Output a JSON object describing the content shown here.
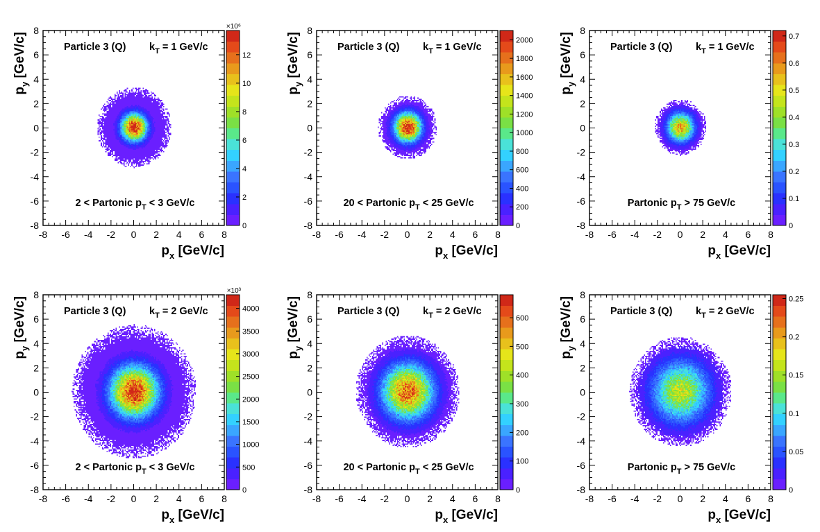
{
  "figure_title": "",
  "chart_data": [
    {
      "type": "heatmap",
      "title": "",
      "particle_label": "Particle 3 (Q)",
      "kt_label": {
        "main": "k",
        "sub": "T",
        "rest": " = 1 GeV/c"
      },
      "pt_label": {
        "pre": "2 < Partonic p",
        "sub": "T",
        "post": " < 3 GeV/c"
      },
      "xlabel": {
        "main": "p",
        "sub": "x",
        "rest": " [GeV/c]"
      },
      "ylabel": {
        "main": "p",
        "sub": "y",
        "rest": " [GeV/c]"
      },
      "xlim": [
        -8,
        8
      ],
      "ylim": [
        -8,
        8
      ],
      "xticks": [
        "-8",
        "-6",
        "-4",
        "-2",
        "0",
        "2",
        "4",
        "6",
        "8"
      ],
      "yticks": [
        "-8",
        "-6",
        "-4",
        "-2",
        "0",
        "2",
        "4",
        "6",
        "8"
      ],
      "center": [
        0,
        0
      ],
      "gaussian_sigma": 0.75,
      "outer_radius": 3.3,
      "z_peak": 13.7,
      "zlim": [
        0,
        13.7
      ],
      "color_multiplier": "×10⁶",
      "color_ticks": [
        {
          "v": 0,
          "label": "0"
        },
        {
          "v": 2,
          "label": "2"
        },
        {
          "v": 4,
          "label": "4"
        },
        {
          "v": 6,
          "label": "6"
        },
        {
          "v": 8,
          "label": "8"
        },
        {
          "v": 10,
          "label": "10"
        },
        {
          "v": 12,
          "label": "12"
        }
      ],
      "colors": [
        "#6a1fff",
        "#4a21ff",
        "#2a31ff",
        "#2a53ff",
        "#3a74ff",
        "#3aa6ff",
        "#33d1ff",
        "#4ae2d8",
        "#5ae88a",
        "#7ae045",
        "#9fe028",
        "#c4e41c",
        "#e6e51a",
        "#e8c11c",
        "#e89a1c",
        "#e6701c",
        "#e44a1a",
        "#d02818"
      ]
    },
    {
      "type": "heatmap",
      "title": "",
      "particle_label": "Particle 3 (Q)",
      "kt_label": {
        "main": "k",
        "sub": "T",
        "rest": " = 1 GeV/c"
      },
      "pt_label": {
        "pre": "20 < Partonic p",
        "sub": "T",
        "post": " < 25 GeV/c"
      },
      "xlabel": {
        "main": "p",
        "sub": "x",
        "rest": " [GeV/c]"
      },
      "ylabel": {
        "main": "p",
        "sub": "y",
        "rest": " [GeV/c]"
      },
      "xlim": [
        -8,
        8
      ],
      "ylim": [
        -8,
        8
      ],
      "xticks": [
        "-8",
        "-6",
        "-4",
        "-2",
        "0",
        "2",
        "4",
        "6",
        "8"
      ],
      "yticks": [
        "-8",
        "-6",
        "-4",
        "-2",
        "0",
        "2",
        "4",
        "6",
        "8"
      ],
      "center": [
        0,
        0
      ],
      "gaussian_sigma": 0.8,
      "outer_radius": 2.6,
      "z_peak": 2080,
      "zlim": [
        0,
        2100
      ],
      "color_multiplier": "",
      "color_ticks": [
        {
          "v": 0,
          "label": "0"
        },
        {
          "v": 200,
          "label": "200"
        },
        {
          "v": 400,
          "label": "400"
        },
        {
          "v": 600,
          "label": "600"
        },
        {
          "v": 800,
          "label": "800"
        },
        {
          "v": 1000,
          "label": "1000"
        },
        {
          "v": 1200,
          "label": "1200"
        },
        {
          "v": 1400,
          "label": "1400"
        },
        {
          "v": 1600,
          "label": "1600"
        },
        {
          "v": 1800,
          "label": "1800"
        },
        {
          "v": 2000,
          "label": "2000"
        }
      ],
      "colors": [
        "#6a1fff",
        "#4a21ff",
        "#2a31ff",
        "#2a53ff",
        "#3a74ff",
        "#3aa6ff",
        "#33d1ff",
        "#4ae2d8",
        "#5ae88a",
        "#7ae045",
        "#9fe028",
        "#c4e41c",
        "#e6e51a",
        "#e8c11c",
        "#e89a1c",
        "#e6701c",
        "#e44a1a",
        "#d02818"
      ]
    },
    {
      "type": "heatmap",
      "title": "",
      "particle_label": "Particle 3 (Q)",
      "kt_label": {
        "main": "k",
        "sub": "T",
        "rest": " = 1 GeV/c"
      },
      "pt_label": {
        "pre": "Partonic p",
        "sub": "T",
        "post": " > 75 GeV/c"
      },
      "xlabel": {
        "main": "p",
        "sub": "x",
        "rest": " [GeV/c]"
      },
      "ylabel": {
        "main": "p",
        "sub": "y",
        "rest": " [GeV/c]"
      },
      "xlim": [
        -8,
        8
      ],
      "ylim": [
        -8,
        8
      ],
      "xticks": [
        "-8",
        "-6",
        "-4",
        "-2",
        "0",
        "2",
        "4",
        "6",
        "8"
      ],
      "yticks": [
        "-8",
        "-6",
        "-4",
        "-2",
        "0",
        "2",
        "4",
        "6",
        "8"
      ],
      "center": [
        0,
        0
      ],
      "gaussian_sigma": 0.8,
      "outer_radius": 2.3,
      "z_peak": 0.55,
      "zlim": [
        0,
        0.72
      ],
      "color_multiplier": "",
      "color_ticks": [
        {
          "v": 0,
          "label": "0"
        },
        {
          "v": 0.1,
          "label": "0.1"
        },
        {
          "v": 0.2,
          "label": "0.2"
        },
        {
          "v": 0.3,
          "label": "0.3"
        },
        {
          "v": 0.4,
          "label": "0.4"
        },
        {
          "v": 0.5,
          "label": "0.5"
        },
        {
          "v": 0.6,
          "label": "0.6"
        },
        {
          "v": 0.7,
          "label": "0.7"
        }
      ],
      "colors": [
        "#6a1fff",
        "#4a21ff",
        "#2a31ff",
        "#2a53ff",
        "#3a74ff",
        "#3aa6ff",
        "#33d1ff",
        "#4ae2d8",
        "#5ae88a",
        "#7ae045",
        "#9fe028",
        "#c4e41c",
        "#e6e51a",
        "#e8c11c",
        "#e89a1c",
        "#e6701c",
        "#e44a1a",
        "#d02818"
      ]
    },
    {
      "type": "heatmap",
      "title": "",
      "particle_label": "Particle 3 (Q)",
      "kt_label": {
        "main": "k",
        "sub": "T",
        "rest": " = 2 GeV/c"
      },
      "pt_label": {
        "pre": "2 < Partonic p",
        "sub": "T",
        "post": " < 3 GeV/c"
      },
      "xlabel": {
        "main": "p",
        "sub": "x",
        "rest": " [GeV/c]"
      },
      "ylabel": {
        "main": "p",
        "sub": "y",
        "rest": " [GeV/c]"
      },
      "xlim": [
        -8,
        8
      ],
      "ylim": [
        -8,
        8
      ],
      "xticks": [
        "-8",
        "-6",
        "-4",
        "-2",
        "0",
        "2",
        "4",
        "6",
        "8"
      ],
      "yticks": [
        "-8",
        "-6",
        "-4",
        "-2",
        "0",
        "2",
        "4",
        "6",
        "8"
      ],
      "center": [
        0,
        0
      ],
      "gaussian_sigma": 1.4,
      "outer_radius": 5.5,
      "z_peak": 4200,
      "zlim": [
        0,
        4300
      ],
      "color_multiplier": "×10³",
      "color_ticks": [
        {
          "v": 0,
          "label": "0"
        },
        {
          "v": 500,
          "label": "500"
        },
        {
          "v": 1000,
          "label": "1000"
        },
        {
          "v": 1500,
          "label": "1500"
        },
        {
          "v": 2000,
          "label": "2000"
        },
        {
          "v": 2500,
          "label": "2500"
        },
        {
          "v": 3000,
          "label": "3000"
        },
        {
          "v": 3500,
          "label": "3500"
        },
        {
          "v": 4000,
          "label": "4000"
        }
      ],
      "colors": [
        "#6a1fff",
        "#4a21ff",
        "#2a31ff",
        "#2a53ff",
        "#3a74ff",
        "#3aa6ff",
        "#33d1ff",
        "#4ae2d8",
        "#5ae88a",
        "#7ae045",
        "#9fe028",
        "#c4e41c",
        "#e6e51a",
        "#e8c11c",
        "#e89a1c",
        "#e6701c",
        "#e44a1a",
        "#d02818"
      ]
    },
    {
      "type": "heatmap",
      "title": "",
      "particle_label": "Particle 3 (Q)",
      "kt_label": {
        "main": "k",
        "sub": "T",
        "rest": " = 2 GeV/c"
      },
      "pt_label": {
        "pre": "20 < Partonic p",
        "sub": "T",
        "post": " < 25 GeV/c"
      },
      "xlabel": {
        "main": "p",
        "sub": "x",
        "rest": " [GeV/c]"
      },
      "ylabel": {
        "main": "p",
        "sub": "y",
        "rest": " [GeV/c]"
      },
      "xlim": [
        -8,
        8
      ],
      "ylim": [
        -8,
        8
      ],
      "xticks": [
        "-8",
        "-6",
        "-4",
        "-2",
        "0",
        "2",
        "4",
        "6",
        "8"
      ],
      "yticks": [
        "-8",
        "-6",
        "-4",
        "-2",
        "0",
        "2",
        "4",
        "6",
        "8"
      ],
      "center": [
        0,
        0
      ],
      "gaussian_sigma": 1.5,
      "outer_radius": 4.6,
      "z_peak": 600,
      "zlim": [
        0,
        680
      ],
      "color_multiplier": "",
      "color_ticks": [
        {
          "v": 0,
          "label": "0"
        },
        {
          "v": 100,
          "label": "100"
        },
        {
          "v": 200,
          "label": "200"
        },
        {
          "v": 300,
          "label": "300"
        },
        {
          "v": 400,
          "label": "400"
        },
        {
          "v": 500,
          "label": "500"
        },
        {
          "v": 600,
          "label": "600"
        }
      ],
      "colors": [
        "#6a1fff",
        "#4a21ff",
        "#2a31ff",
        "#2a53ff",
        "#3a74ff",
        "#3aa6ff",
        "#33d1ff",
        "#4ae2d8",
        "#5ae88a",
        "#7ae045",
        "#9fe028",
        "#c4e41c",
        "#e6e51a",
        "#e8c11c",
        "#e89a1c",
        "#e6701c",
        "#e44a1a",
        "#d02818"
      ]
    },
    {
      "type": "heatmap",
      "title": "",
      "particle_label": "Particle 3 (Q)",
      "kt_label": {
        "main": "k",
        "sub": "T",
        "rest": " = 2 GeV/c"
      },
      "pt_label": {
        "pre": "Partonic p",
        "sub": "T",
        "post": " > 75 GeV/c"
      },
      "xlabel": {
        "main": "p",
        "sub": "x",
        "rest": " [GeV/c]"
      },
      "ylabel": {
        "main": "p",
        "sub": "y",
        "rest": " [GeV/c]"
      },
      "xlim": [
        -8,
        8
      ],
      "ylim": [
        -8,
        8
      ],
      "xticks": [
        "-8",
        "-6",
        "-4",
        "-2",
        "0",
        "2",
        "4",
        "6",
        "8"
      ],
      "yticks": [
        "-8",
        "-6",
        "-4",
        "-2",
        "0",
        "2",
        "4",
        "6",
        "8"
      ],
      "center": [
        0,
        0
      ],
      "gaussian_sigma": 1.7,
      "outer_radius": 4.5,
      "z_peak": 0.16,
      "zlim": [
        0,
        0.255
      ],
      "color_multiplier": "",
      "color_ticks": [
        {
          "v": 0,
          "label": "0"
        },
        {
          "v": 0.05,
          "label": "0.05"
        },
        {
          "v": 0.1,
          "label": "0.1"
        },
        {
          "v": 0.15,
          "label": "0.15"
        },
        {
          "v": 0.2,
          "label": "0.2"
        },
        {
          "v": 0.25,
          "label": "0.25"
        }
      ],
      "colors": [
        "#6a1fff",
        "#4a21ff",
        "#2a31ff",
        "#2a53ff",
        "#3a74ff",
        "#3aa6ff",
        "#33d1ff",
        "#4ae2d8",
        "#5ae88a",
        "#7ae045",
        "#9fe028",
        "#c4e41c",
        "#e6e51a",
        "#e8c11c",
        "#e89a1c",
        "#e6701c",
        "#e44a1a",
        "#d02818"
      ]
    }
  ]
}
